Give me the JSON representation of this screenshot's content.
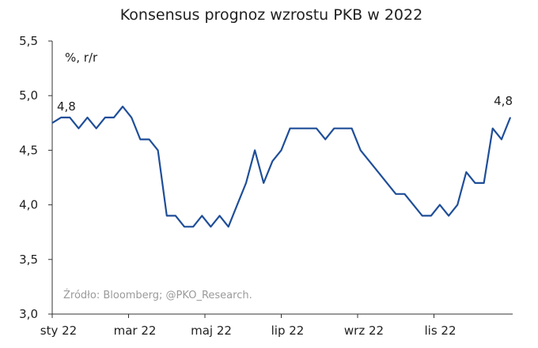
{
  "chart_data": {
    "type": "line",
    "title": "Konsensus prognoz wzrostu PKB w 2022",
    "unit_label": "%, r/r",
    "source": "Źródło: Bloomberg; @PKO_Research.",
    "ylim": [
      3.0,
      5.5
    ],
    "y_ticks": [
      "3,0",
      "3,5",
      "4,0",
      "4,5",
      "5,0",
      "5,5"
    ],
    "x_ticks": [
      "sty 22",
      "mar 22",
      "maj 22",
      "lip 22",
      "wrz 22",
      "lis 22"
    ],
    "grid": false,
    "series": [
      {
        "color": "#1f4e99",
        "values": [
          4.75,
          4.8,
          4.8,
          4.7,
          4.8,
          4.7,
          4.8,
          4.8,
          4.9,
          4.8,
          4.6,
          4.6,
          4.5,
          3.9,
          3.9,
          3.8,
          3.8,
          3.9,
          3.8,
          3.9,
          3.8,
          4.0,
          4.2,
          4.5,
          4.2,
          4.4,
          4.5,
          4.7,
          4.7,
          4.7,
          4.7,
          4.6,
          4.7,
          4.7,
          4.7,
          4.5,
          4.4,
          4.3,
          4.2,
          4.1,
          4.1,
          4.0,
          3.9,
          3.9,
          4.0,
          3.9,
          4.0,
          4.3,
          4.2,
          4.2,
          4.7,
          4.6,
          4.8
        ]
      }
    ],
    "data_labels": [
      {
        "index": 0,
        "text": "4,8"
      },
      {
        "index": 52,
        "text": "4,8"
      }
    ]
  }
}
